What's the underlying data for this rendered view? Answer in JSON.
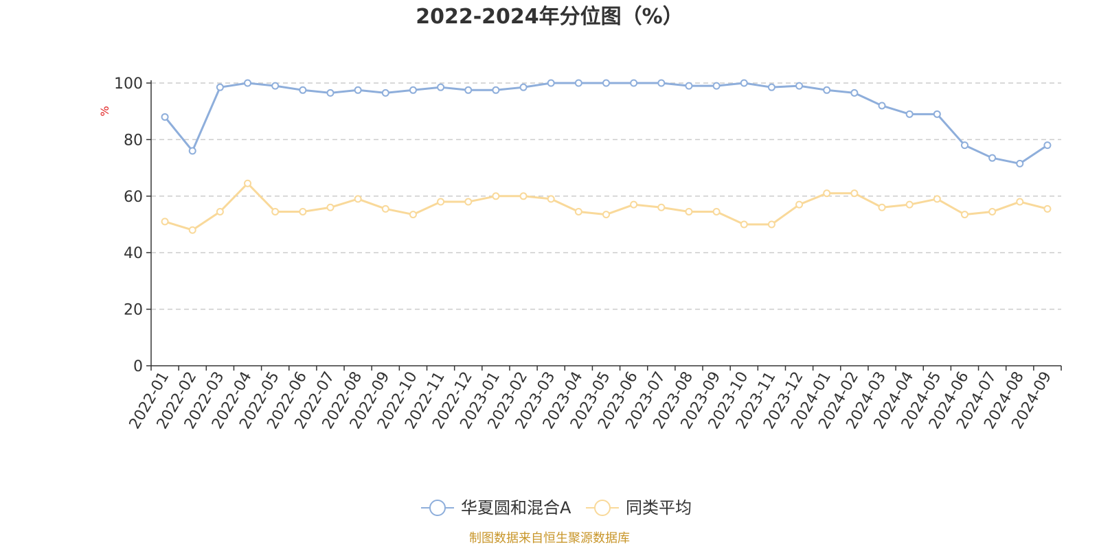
{
  "chart_data": {
    "type": "line",
    "title": "2022-2024年分位图（%）",
    "ylabel": "%",
    "ylim": [
      0,
      100
    ],
    "yticks": [
      0,
      20,
      40,
      60,
      80,
      100
    ],
    "grid": true,
    "legend_position": "bottom-center",
    "categories": [
      "2022-01",
      "2022-02",
      "2022-03",
      "2022-04",
      "2022-05",
      "2022-06",
      "2022-07",
      "2022-08",
      "2022-09",
      "2022-10",
      "2022-11",
      "2022-12",
      "2023-01",
      "2023-02",
      "2023-03",
      "2023-04",
      "2023-05",
      "2023-06",
      "2023-07",
      "2023-08",
      "2023-09",
      "2023-10",
      "2023-11",
      "2023-12",
      "2024-01",
      "2024-02",
      "2024-03",
      "2024-04",
      "2024-05",
      "2024-06",
      "2024-07",
      "2024-08",
      "2024-09"
    ],
    "series": [
      {
        "name": "华夏圆和混合A",
        "color": "#8eaedb",
        "values": [
          88,
          76,
          98.5,
          100,
          99,
          97.5,
          96.5,
          97.5,
          96.5,
          97.5,
          98.5,
          97.5,
          97.5,
          98.5,
          100,
          100,
          100,
          100,
          100,
          99,
          99,
          100,
          98.5,
          99,
          97.5,
          96.5,
          92,
          89,
          89,
          78,
          73.5,
          71.5,
          78
        ]
      },
      {
        "name": "同类平均",
        "color": "#f9d99a",
        "values": [
          51,
          48,
          54.5,
          64.5,
          54.5,
          54.5,
          56,
          59,
          55.5,
          53.5,
          58,
          58,
          60,
          60,
          59,
          54.5,
          53.5,
          57,
          56,
          54.5,
          54.5,
          50,
          50,
          57,
          61,
          61,
          56,
          57,
          59,
          53.5,
          54.5,
          58,
          55.5
        ]
      }
    ],
    "source": "制图数据来自恒生聚源数据库",
    "source_color": "#c8962a"
  }
}
